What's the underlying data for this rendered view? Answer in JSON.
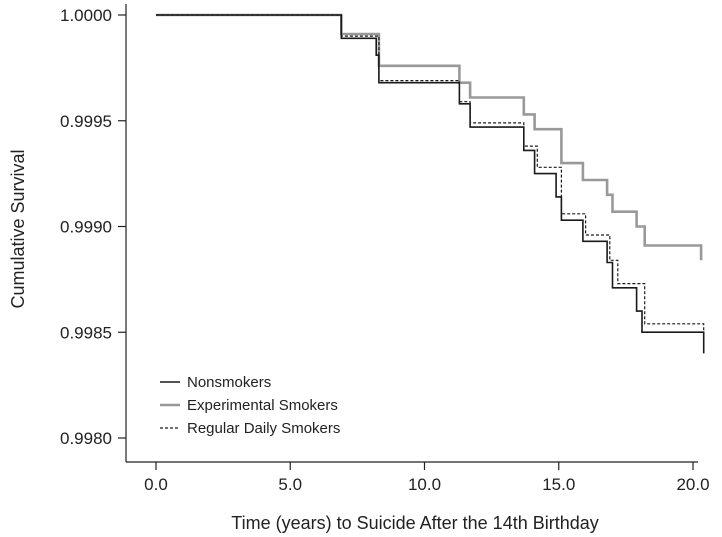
{
  "chart_data": {
    "type": "line",
    "title": "",
    "xlabel": "Time (years) to Suicide After the 14th Birthday",
    "ylabel": "Cumulative Survival",
    "xlim": [
      0,
      20.4
    ],
    "ylim": [
      0.99775,
      1.0
    ],
    "x_ticks": [
      0,
      5,
      10,
      15,
      20
    ],
    "x_tick_labels": [
      "0.0",
      "5.0",
      "10.0",
      "15.0",
      "20.0"
    ],
    "y_ticks": [
      0.998,
      0.9985,
      0.999,
      0.9995,
      1.0
    ],
    "y_tick_labels": [
      "0.9980",
      "0.9985",
      "0.9990",
      "0.9995",
      "1.0000"
    ],
    "grid": false,
    "legend_position": "bottom-left",
    "series": [
      {
        "name": "Nonsmokers",
        "color": "#1a1a1a",
        "style": "solid",
        "width": 1.6,
        "points": [
          [
            0,
            1.0
          ],
          [
            6.9,
            0.99989
          ],
          [
            8.2,
            0.99981
          ],
          [
            8.3,
            0.99968
          ],
          [
            11.3,
            0.99958
          ],
          [
            11.7,
            0.99947
          ],
          [
            13.7,
            0.99936
          ],
          [
            14.1,
            0.99925
          ],
          [
            14.9,
            0.99914
          ],
          [
            15.1,
            0.99903
          ],
          [
            15.9,
            0.99893
          ],
          [
            16.8,
            0.99883
          ],
          [
            17.0,
            0.99871
          ],
          [
            17.9,
            0.9986
          ],
          [
            18.1,
            0.9985
          ],
          [
            20.4,
            0.9984
          ]
        ]
      },
      {
        "name": "Experimental Smokers",
        "color": "#999999",
        "style": "solid",
        "width": 2.6,
        "points": [
          [
            0,
            1.0
          ],
          [
            6.9,
            0.99991
          ],
          [
            8.3,
            0.99976
          ],
          [
            11.3,
            0.99968
          ],
          [
            11.7,
            0.99961
          ],
          [
            13.7,
            0.99953
          ],
          [
            14.1,
            0.99946
          ],
          [
            15.1,
            0.9993
          ],
          [
            15.9,
            0.99922
          ],
          [
            16.8,
            0.99915
          ],
          [
            17.0,
            0.99907
          ],
          [
            17.9,
            0.999
          ],
          [
            18.2,
            0.99891
          ],
          [
            20.3,
            0.99884
          ]
        ]
      },
      {
        "name": "Regular Daily Smokers",
        "color": "#1a1a1a",
        "style": "dashed",
        "width": 1.2,
        "points": [
          [
            0,
            1.0
          ],
          [
            6.9,
            0.9999
          ],
          [
            8.3,
            0.99969
          ],
          [
            11.3,
            0.99959
          ],
          [
            11.7,
            0.99949
          ],
          [
            13.7,
            0.99938
          ],
          [
            14.2,
            0.99928
          ],
          [
            15.1,
            0.99906
          ],
          [
            16.0,
            0.99896
          ],
          [
            16.9,
            0.99884
          ],
          [
            17.2,
            0.99873
          ],
          [
            18.2,
            0.99854
          ],
          [
            20.4,
            0.99846
          ]
        ]
      }
    ]
  }
}
